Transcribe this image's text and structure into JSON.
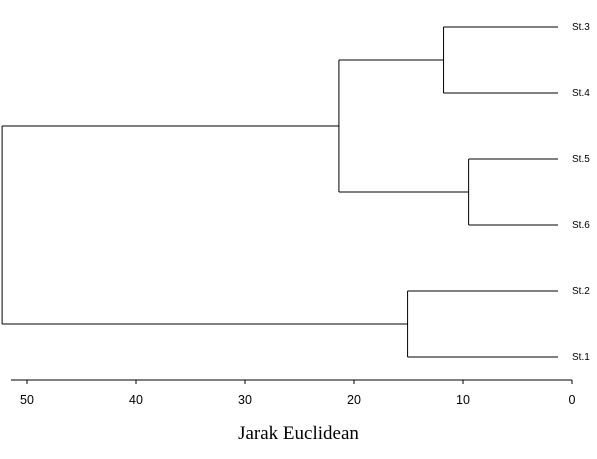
{
  "chart_data": {
    "type": "dendrogram",
    "xlabel": "Jarak Euclidean",
    "xlim": [
      0,
      51
    ],
    "x_ticks": [
      50,
      40,
      30,
      20,
      10,
      0
    ],
    "x_direction": "reversed",
    "leaves": [
      "St.3",
      "St.4",
      "St.5",
      "St.6",
      "St.2",
      "St.1"
    ],
    "merges": [
      {
        "id": "m1",
        "children": [
          "St.5",
          "St.6"
        ],
        "height": 8.2
      },
      {
        "id": "m2",
        "children": [
          "St.3",
          "St.4"
        ],
        "height": 10.5
      },
      {
        "id": "m3",
        "children": [
          "St.2",
          "St.1"
        ],
        "height": 13.8
      },
      {
        "id": "m4",
        "children": [
          "m2",
          "m1"
        ],
        "height": 20.1
      },
      {
        "id": "m5",
        "children": [
          "m4",
          "m3"
        ],
        "height": 51.0
      }
    ],
    "line_color": "#000000"
  }
}
